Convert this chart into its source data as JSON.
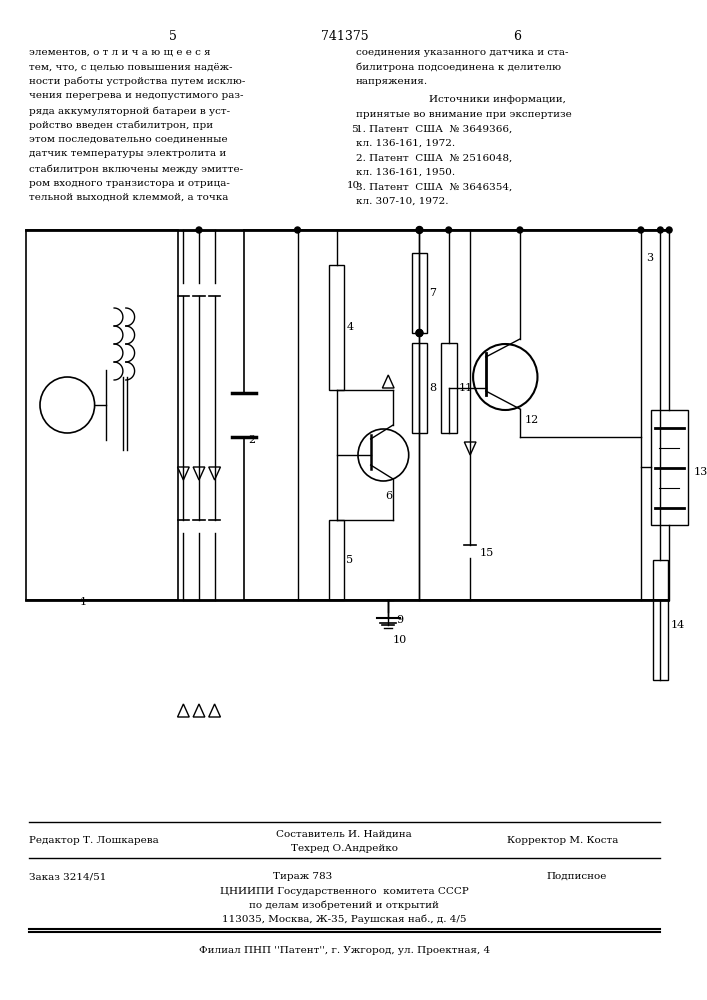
{
  "page_number_left": "5",
  "patent_number": "741375",
  "page_number_right": "6",
  "left_text": [
    "элементов, о т л и ч а ю щ е е с я",
    "тем, что, с целью повышения надёж-",
    "ности работы устройства путем исклю-",
    "чения перегрева и недопустимого раз-",
    "ряда аккумуляторной батареи в уст-",
    "ройство введен стабилитрон, при",
    "этом последовательно соединенные",
    "датчик температуры электролита и",
    "стабилитрон включены между эмитте-",
    "ром входного транзистора и отрица-",
    "тельной выходной клеммой, а точка"
  ],
  "right_text_line1": "соединения указанного датчика и ста-",
  "right_text_line2": "билитрона подсоединена к делителю",
  "right_text_line3": "напряжения.",
  "right_text_line4": "Источники информации,",
  "right_text_line5": "принятые во внимание при экспертизе",
  "ref_num_5": "5",
  "ref_num_10": "10",
  "right_ref1": "1. Патент  США  № 3649366,",
  "right_ref1b": "кл. 136-161, 1972.",
  "right_ref2": "2. Патент  США  № 2516048,",
  "right_ref2b": "кл. 136-161, 1950.",
  "right_ref3": "3. Патент  США  № 3646354,",
  "right_ref3b": "кл. 307-10, 1972.",
  "footer_editor": "Редактор Т. Лошкарева",
  "footer_composer": "Составитель И. Найдина",
  "footer_corrector": "Корректор М. Коста",
  "footer_tech": "Техред О.Андрейко",
  "footer_order": "Заказ 3214/51",
  "footer_print": "Тираж 783",
  "footer_subscription": "Подписное",
  "footer_org": "ЦНИИПИ Государственного  комитета СССР",
  "footer_org2": "по делам изобретений и открытий",
  "footer_addr": "113035, Москва, Ж-35, Раушская наб., д. 4/5",
  "footer_branch": "Филиал ПНП ''Патент'', г. Ужгород, ул. Проектная, 4",
  "bg_color": "#ffffff",
  "text_color": "#000000",
  "line_color": "#000000"
}
